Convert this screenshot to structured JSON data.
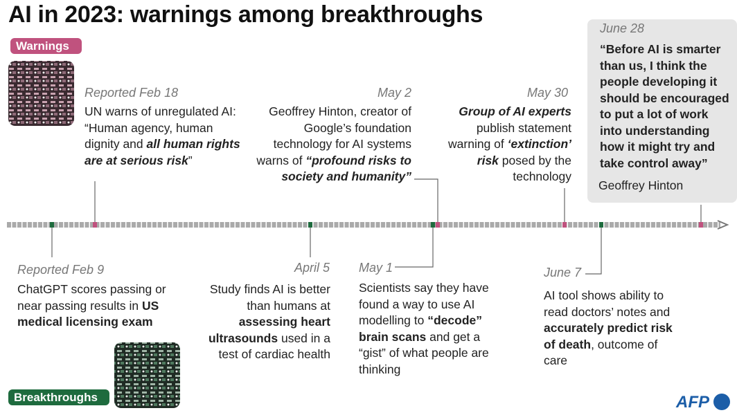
{
  "title": "AI in 2023: warnings among breakthroughs",
  "legend": {
    "warnings": "Warnings",
    "breakthroughs": "Breakthroughs"
  },
  "events": [
    {
      "date": "Reported Feb 18",
      "kind": "warning",
      "text": [
        "UN warns of unregulated AI: “Human agency, human dignity and ",
        {
          "text": "all human rights are at serious risk",
          "style": "bold-italic"
        },
        "”"
      ]
    },
    {
      "date": "May 2",
      "kind": "warning",
      "text": [
        "Geoffrey Hinton, creator of Google’s foundation technology for AI systems warns of ",
        {
          "text": "“profound risks to society and humanity”",
          "style": "bold-italic"
        }
      ]
    },
    {
      "date": "May 30",
      "kind": "warning",
      "text": [
        {
          "text": "Group of AI experts",
          "style": "bold-italic"
        },
        " publish statement warning of ",
        {
          "text": "‘extinction’ risk",
          "style": "bold-italic"
        },
        " posed by the technology"
      ]
    },
    {
      "date": "June 28",
      "kind": "warning",
      "text": [
        {
          "text": "“Before AI is smarter than us, I think the people developing it should be encouraged to put a lot of work into understanding how it might try and take control away”",
          "style": "bold"
        }
      ],
      "author": "Geoffrey Hinton"
    },
    {
      "date": "Reported Feb 9",
      "kind": "breakthrough",
      "text": [
        "ChatGPT scores passing or near passing results in ",
        {
          "text": "US medical licensing exam",
          "style": "bold"
        }
      ]
    },
    {
      "date": "April 5",
      "kind": "breakthrough",
      "text": [
        "Study finds AI is better than humans at ",
        {
          "text": "assessing heart ultrasounds",
          "style": "bold"
        },
        " used in a test of cardiac health"
      ]
    },
    {
      "date": "May 1",
      "kind": "breakthrough",
      "text": [
        "Scientists say they have found a way to use AI modelling to ",
        {
          "text": "“decode” brain scans",
          "style": "bold"
        },
        " and get a “gist” of what people are thinking"
      ]
    },
    {
      "date": "June 7",
      "kind": "breakthrough",
      "text": [
        "AI tool shows ability to read doctors’ notes and ",
        {
          "text": "accurately predict risk of death",
          "style": "bold"
        },
        ", outcome of care"
      ]
    }
  ],
  "source": "AFP"
}
